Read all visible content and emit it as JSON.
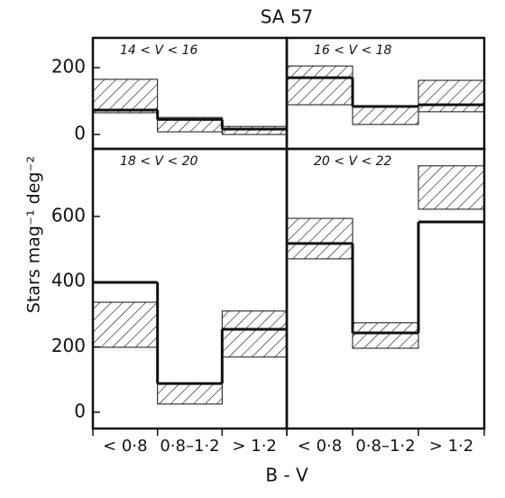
{
  "title": "SA 57",
  "xlabel": "B - V",
  "ylabel": "Stars  mag⁻¹  deg⁻²",
  "chart_data": [
    {
      "type": "step",
      "title": "14 < V < 16",
      "ylim": [
        -43,
        289
      ],
      "yticks": [
        0,
        200
      ],
      "values": [
        73,
        45,
        16
      ],
      "band_low": [
        65,
        8,
        0
      ],
      "band_high": [
        165,
        51,
        24
      ]
    },
    {
      "type": "step",
      "title": "16 < V < 18",
      "ylim": [
        -43,
        289
      ],
      "values": [
        170,
        84,
        89
      ],
      "band_low": [
        89,
        30,
        68
      ],
      "band_high": [
        205,
        86,
        162
      ]
    },
    {
      "type": "step",
      "title": "18 < V < 20",
      "ylim": [
        -50,
        807
      ],
      "yticks": [
        0,
        200,
        400,
        600
      ],
      "categories": [
        "< 0·8",
        "0·8–1·2",
        "> 1·2"
      ],
      "values": [
        398,
        88,
        254
      ],
      "band_low": [
        199,
        25,
        169
      ],
      "band_high": [
        337,
        88,
        310
      ]
    },
    {
      "type": "step",
      "title": "20 < V < 22",
      "ylim": [
        -50,
        807
      ],
      "categories": [
        "< 0·8",
        "0·8–1·2",
        "> 1·2"
      ],
      "values": [
        517,
        243,
        583
      ],
      "band_low": [
        470,
        196,
        622
      ],
      "band_high": [
        594,
        274,
        755
      ]
    }
  ]
}
